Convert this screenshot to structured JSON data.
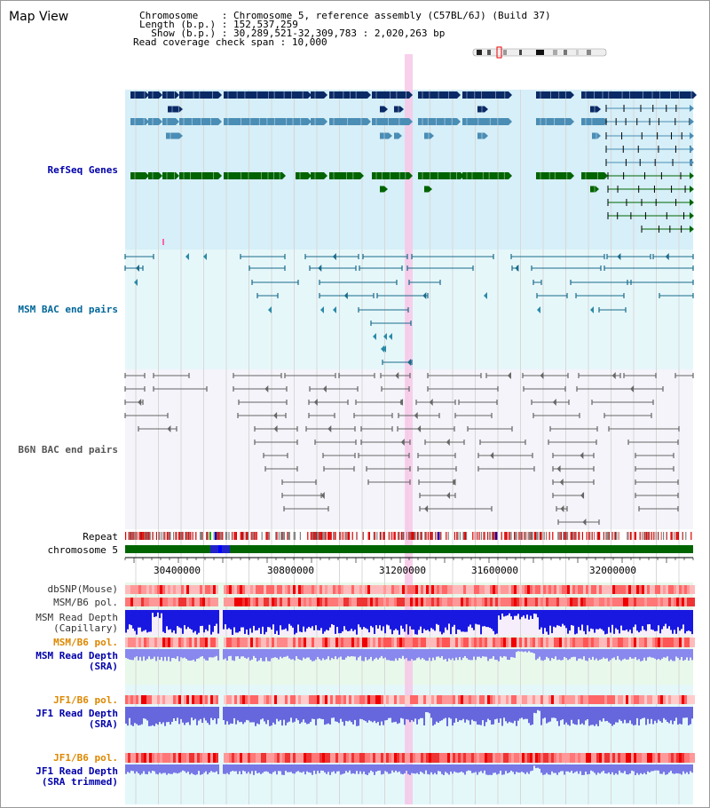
{
  "window_title": "Map View",
  "header": {
    "rows": [
      {
        "key": "Chromosome    ",
        "value": "Chromosome 5, reference assembly (C57BL/6J) (Build 37)"
      },
      {
        "key": "Length (b.p.) ",
        "value": "152,537,259"
      },
      {
        "key": "  Show (b.p.) ",
        "value": "30,289,521-32,309,783 : 2,020,263 bp"
      }
    ],
    "span_label": "Read coverage check span",
    "span_value": "10,000"
  },
  "tracks": {
    "refseq": "RefSeq Genes",
    "msm_bac": "MSM BAC end pairs",
    "b6n_bac": "B6N BAC end pairs",
    "repeat": "Repeat",
    "chromosome": "chromosome 5",
    "dbsnp": "dbSNP(Mouse)",
    "msm_b6_pol": "MSM/B6 pol.",
    "msm_depth_cap_1": "MSM Read Depth",
    "msm_depth_cap_2": "(Capillary)",
    "msm_b6_pol_sra": "MSM/B6 pol.",
    "msm_depth_sra_1": "MSM Read Depth",
    "msm_depth_sra_2": "(SRA)",
    "jf1_b6_pol": "JF1/B6 pol.",
    "jf1_depth_sra_1": "JF1 Read Depth",
    "jf1_depth_sra_2": "(SRA)",
    "jf1_b6_pol2": "JF1/B6 pol.",
    "jf1_depth_trim_1": "JF1 Read Depth",
    "jf1_depth_trim_2": "(SRA trimmed)"
  },
  "axis_ticks": [
    "30400000",
    "30800000",
    "31200000",
    "31600000",
    "32000000"
  ],
  "colors": {
    "refseq_label": "#0000aa",
    "msm_label": "#006699",
    "b6n_label": "#555555",
    "pol_label": "#dd8800",
    "depth_label": "#0000aa",
    "gene_dark": "#0a2a66",
    "gene_mid": "#4a8db5",
    "gene_green": "#006400",
    "refseq_bg": "#d6eff8",
    "msm_bg": "#e6f7fa",
    "b6n_bg": "#f4f4fa",
    "highlight": "#f7c8e8"
  }
}
